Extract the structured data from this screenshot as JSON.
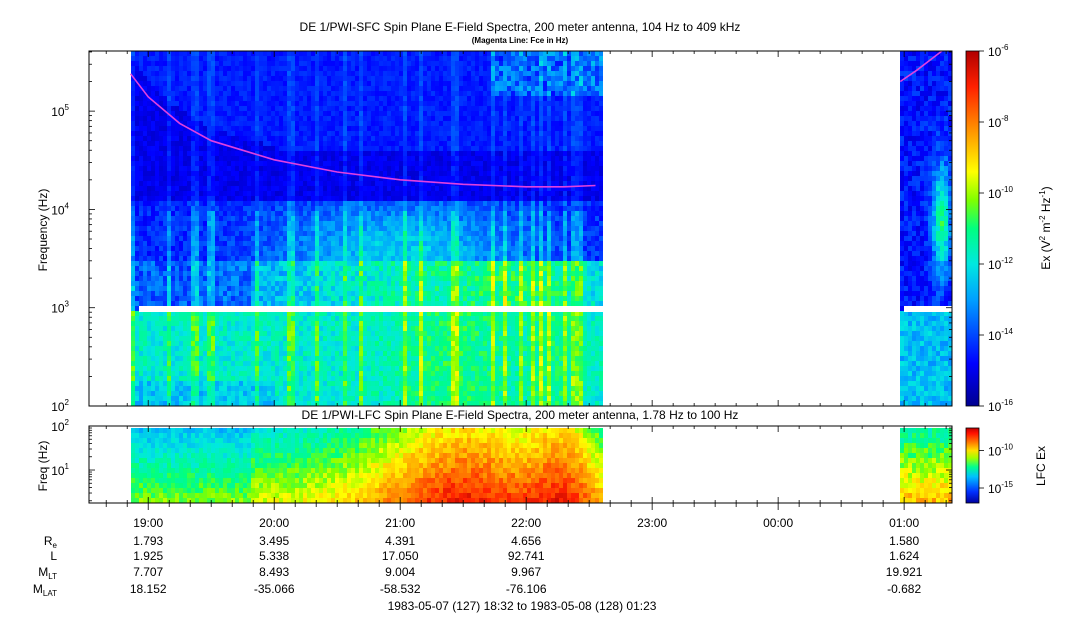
{
  "chart_data": [
    {
      "type": "heatmap",
      "title": "DE 1/PWI-SFC  Spin Plane E-Field Spectra, 200 meter antenna, 104 Hz to 409 kHz",
      "subtitle": "(Magenta Line: Fce in Hz)",
      "ylabel": "Frequency (Hz)",
      "yscale": "log",
      "ylim": [
        100,
        409000
      ],
      "yticks": [
        {
          "label": "10",
          "exp": "2",
          "value": 100
        },
        {
          "label": "10",
          "exp": "3",
          "value": 1000
        },
        {
          "label": "10",
          "exp": "4",
          "value": 10000
        },
        {
          "label": "10",
          "exp": "5",
          "value": 100000
        }
      ],
      "colorbar": {
        "label_main": "Ex (V",
        "label_sup1": "2",
        "label_mid": " m",
        "label_sup2": "-2",
        "label_mid2": " Hz",
        "label_sup3": "-1",
        "label_end": ")",
        "scale": "log",
        "range": [
          1e-16,
          1e-06
        ],
        "ticks": [
          {
            "label": "10",
            "exp": "-6",
            "value": -6
          },
          {
            "label": "10",
            "exp": "-8",
            "value": -8
          },
          {
            "label": "10",
            "exp": "-10",
            "value": -10
          },
          {
            "label": "10",
            "exp": "-12",
            "value": -12
          },
          {
            "label": "10",
            "exp": "-14",
            "value": -14
          },
          {
            "label": "10",
            "exp": "-16",
            "value": -16
          }
        ]
      },
      "data_coverage_hours": [
        [
          18.86,
          22.6
        ],
        [
          24.97,
          25.37
        ]
      ],
      "gap_band_hz": [
        850,
        1000
      ],
      "fce_line": {
        "color": "#e040e0",
        "x": [
          18.86,
          19.0,
          19.25,
          19.5,
          20.0,
          20.5,
          21.0,
          21.5,
          22.0,
          22.3,
          22.55,
          24.97,
          25.1,
          25.3
        ],
        "y": [
          240000,
          140000,
          75000,
          50000,
          32000,
          24000,
          20000,
          18000,
          17000,
          17000,
          17500,
          200000,
          260000,
          409000
        ]
      }
    },
    {
      "type": "heatmap",
      "title": "DE 1/PWI-LFC  Spin Plane E-Field Spectra, 200 meter antenna, 1.78 Hz to 100 Hz",
      "ylabel": "Freq (Hz)",
      "yscale": "log",
      "ylim": [
        1.78,
        100
      ],
      "yticks": [
        {
          "label": "10",
          "exp": "1",
          "value": 10
        },
        {
          "label": "10",
          "exp": "2",
          "value": 100
        }
      ],
      "colorbar": {
        "label": "LFC Ex",
        "scale": "log",
        "range": [
          1e-17,
          1e-07
        ],
        "ticks": [
          {
            "label": "10",
            "exp": "-10",
            "value": -10
          },
          {
            "label": "10",
            "exp": "-15",
            "value": -15
          }
        ]
      },
      "data_coverage_hours": [
        [
          18.86,
          22.6
        ],
        [
          24.97,
          25.37
        ]
      ]
    }
  ],
  "xaxis": {
    "xlim_hours": [
      18.53,
      25.38
    ],
    "ticks": [
      {
        "label": "19:00",
        "h": 19
      },
      {
        "label": "20:00",
        "h": 20
      },
      {
        "label": "21:00",
        "h": 21
      },
      {
        "label": "22:00",
        "h": 22
      },
      {
        "label": "23:00",
        "h": 23
      },
      {
        "label": "00:00",
        "h": 24
      },
      {
        "label": "01:00",
        "h": 25
      }
    ]
  },
  "ephemeris": {
    "rows": [
      {
        "name": "R",
        "sub": "e",
        "values": [
          "1.793",
          "3.495",
          "4.391",
          "4.656",
          "",
          "",
          "1.580"
        ]
      },
      {
        "name": "L",
        "sub": "",
        "values": [
          "1.925",
          "5.338",
          "17.050",
          "92.741",
          "",
          "",
          "1.624"
        ]
      },
      {
        "name": "M",
        "sub": "LT",
        "values": [
          "7.707",
          "8.493",
          "9.004",
          "9.967",
          "",
          "",
          "19.921"
        ]
      },
      {
        "name": "M",
        "sub": "LAT",
        "values": [
          "18.152",
          "-35.066",
          "-58.532",
          "-76.106",
          "",
          "",
          "-0.682"
        ]
      }
    ]
  },
  "time_range": "1983-05-07 (127) 18:32 to 1983-05-08 (128) 01:23"
}
